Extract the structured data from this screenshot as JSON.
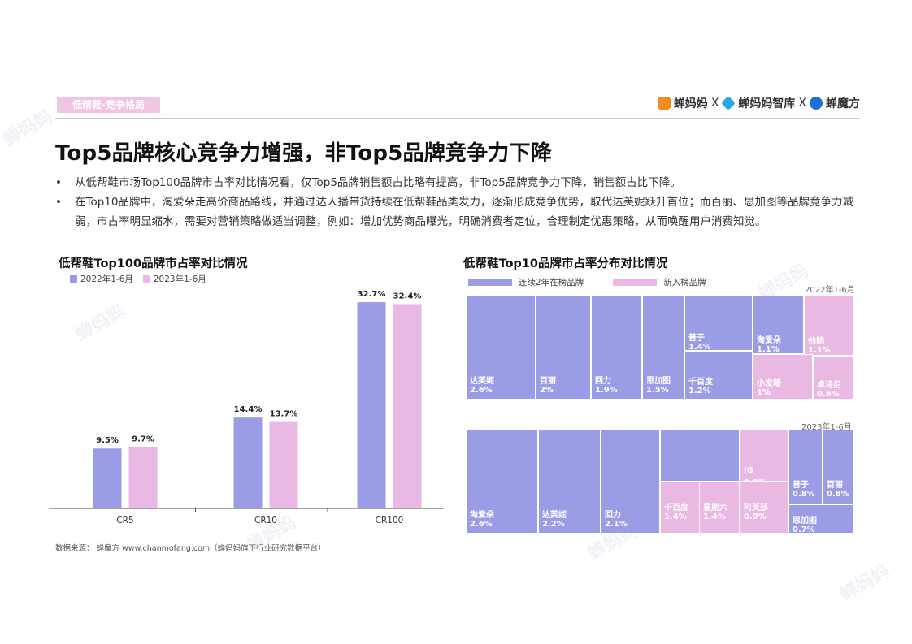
{
  "header": {
    "tag": "低帮鞋-竞争格局",
    "logos": [
      {
        "name": "蝉妈妈",
        "color": "#f28b1f"
      },
      {
        "sep": "X"
      },
      {
        "name": "蝉妈妈智库",
        "color": "#2aa6e0"
      },
      {
        "sep": "X"
      },
      {
        "name": "蝉魔方",
        "color": "#1e6fd9"
      }
    ]
  },
  "title": "Top5品牌核心竞争力增强，非Top5品牌竞争力下降",
  "bullets": [
    "从低帮鞋市场Top100品牌市占率对比情况看，仅Top5品牌销售额占比略有提高，非Top5品牌竞争力下降，销售额占比下降。",
    "在Top10品牌中，淘爱朵走高价商品路线，并通过达人播带货持续在低帮鞋品类发力，逐渐形成竞争优势，取代达芙妮跃升首位；而百丽、思加图等品牌竞争力减弱，市占率明显缩水，需要对营销策略做适当调整，例如：增加优势商品曝光，明确消费者定位，合理制定优惠策略，从而唤醒用户消费知觉。"
  ],
  "bullet_marker": "•",
  "left_chart_title": "低帮鞋Top100品牌市占率对比情况",
  "right_chart_title": "低帮鞋Top10品牌市占率分布对比情况",
  "right_legend": {
    "existing": "连续2年在榜品牌",
    "new": "新入榜品牌"
  },
  "colors": {
    "series_2022": "#9b9ce6",
    "series_2023": "#eab9e3",
    "existing": "#9b9ce6",
    "new": "#eab9e3",
    "tag": "#f0c4e3"
  },
  "chart_data": [
    {
      "type": "bar",
      "title": "低帮鞋Top100品牌市占率对比情况",
      "categories": [
        "CR5",
        "CR10",
        "CR100"
      ],
      "series": [
        {
          "name": "2022年1-6月",
          "values": [
            9.5,
            14.4,
            32.7
          ],
          "labels": [
            "9.5%",
            "14.4%",
            "32.7%"
          ]
        },
        {
          "name": "2023年1-6月",
          "values": [
            9.7,
            13.7,
            32.4
          ],
          "labels": [
            "9.7%",
            "13.7%",
            "32.4%"
          ]
        }
      ],
      "ylim": [
        0,
        34
      ],
      "legend": "top-left",
      "grid": false
    },
    {
      "type": "treemap",
      "period": "2022年1-6月",
      "items": [
        {
          "brand": "达芙妮",
          "value": "2.6%",
          "new": false
        },
        {
          "brand": "百丽",
          "value": "2%",
          "new": false
        },
        {
          "brand": "回力",
          "value": "1.9%",
          "new": false
        },
        {
          "brand": "思加图",
          "value": "1.5%",
          "new": false
        },
        {
          "brand": "普子",
          "value": "1.4%",
          "new": false
        },
        {
          "brand": "千百度",
          "value": "1.2%",
          "new": false
        },
        {
          "brand": "淘爱朵",
          "value": "1.1%",
          "new": false
        },
        {
          "brand": "他她",
          "value": "1.1%",
          "new": true
        },
        {
          "brand": "小发暗",
          "value": "1%",
          "new": true
        },
        {
          "brand": "卓诗尼",
          "value": "0.6%",
          "new": true
        }
      ]
    },
    {
      "type": "treemap",
      "period": "2023年1-6月",
      "items": [
        {
          "brand": "淘爱朵",
          "value": "2.6%",
          "new": false
        },
        {
          "brand": "达芙妮",
          "value": "2.2%",
          "new": false
        },
        {
          "brand": "回力",
          "value": "2.1%",
          "new": false
        },
        {
          "brand": "",
          "value": "",
          "new": false
        },
        {
          "brand": "千百度",
          "value": "1.4%",
          "new": true
        },
        {
          "brand": "星期六",
          "value": "1.4%",
          "new": true
        },
        {
          "brand": "IG",
          "value": "0.9%",
          "new": true
        },
        {
          "brand": "阿芙莎",
          "value": "0.9%",
          "new": true
        },
        {
          "brand": "普子",
          "value": "0.8%",
          "new": false
        },
        {
          "brand": "百丽",
          "value": "0.8%",
          "new": false
        },
        {
          "brand": "思加图",
          "value": "0.7%",
          "new": false
        }
      ]
    }
  ],
  "source": "数据来源：  蝉魔方   www.chanmofang.com（蝉妈妈旗下行业研究数据平台）"
}
